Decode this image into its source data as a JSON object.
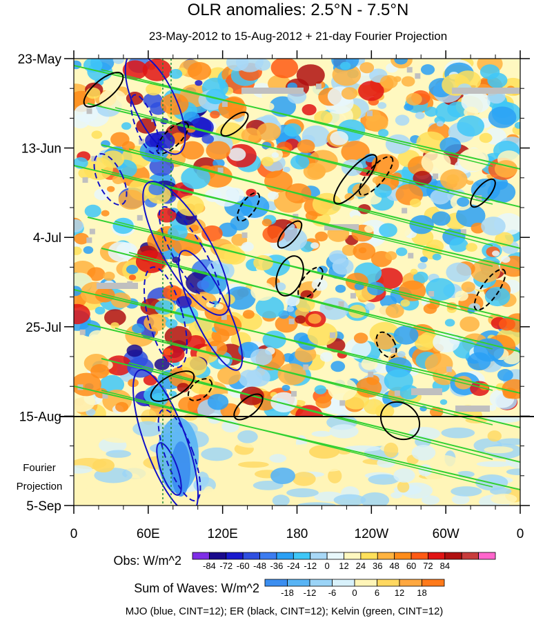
{
  "chart_data": {
    "type": "heatmap",
    "title": "OLR anomalies: 2.5°N - 7.5°N",
    "subtitle": "23-May-2012 to 15-Aug-2012 + 21-day Fourier Projection",
    "x_ticks": [
      "0",
      "60E",
      "120E",
      "180",
      "120W",
      "60W",
      "0"
    ],
    "y_ticks": [
      "23-May",
      "13-Jun",
      "4-Jul",
      "25-Jul",
      "15-Aug",
      "5-Sep"
    ],
    "projection_label": [
      "Fourier",
      "Projection"
    ],
    "x_range_deg_east": [
      0,
      360
    ],
    "y_range": [
      "23-May-2012",
      "5-Sep-2012"
    ],
    "obs_end": "15-Aug-2012",
    "obs_colorbar": {
      "label": "Obs: W/m^2",
      "levels": [
        "-84",
        "-72",
        "-60",
        "-48",
        "-36",
        "-24",
        "-12",
        "0",
        "12",
        "24",
        "36",
        "48",
        "60",
        "72",
        "84"
      ],
      "colors": [
        "#7f2ee6",
        "#1a0a8c",
        "#1a1acd",
        "#2f4fe0",
        "#3c7cf0",
        "#2aa0f5",
        "#3fc7f7",
        "#a8d8f7",
        "#e8f7fb",
        "#fff8c0",
        "#ffe05a",
        "#ffb340",
        "#ff8c1a",
        "#ff5a14",
        "#e01414",
        "#b01010",
        "#c83c3c",
        "#ff66cc"
      ]
    },
    "waves_colorbar": {
      "label": "Sum of Waves: W/m^2",
      "levels": [
        "-18",
        "-12",
        "-6",
        "0",
        "6",
        "12",
        "18"
      ],
      "colors": [
        "#3b8ef0",
        "#58b4f5",
        "#9bd4f7",
        "#d8f1fb",
        "#fff5b8",
        "#ffd860",
        "#ffa840",
        "#ff7a1a"
      ]
    },
    "wave_colors": {
      "mjo": "#1010c8",
      "er": "#000000",
      "kelvin": "#30d030"
    },
    "caption": "MJO (blue, CINT=12); ER (black, CINT=12); Kelvin (green, CINT=12)"
  }
}
